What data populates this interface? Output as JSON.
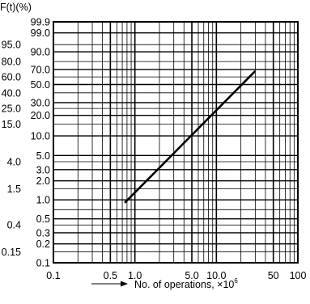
{
  "chart_data": {
    "type": "line",
    "title": "",
    "ylabel": "F(t)(%)",
    "xlabel": "No. of operations, ×10",
    "xlabel_exponent": "6",
    "x_scale": "log",
    "y_scale": "weibull-probability",
    "xlim": [
      0.1,
      100
    ],
    "ylim": [
      0.1,
      99.9
    ],
    "grid": true,
    "x_ticks": [
      {
        "value": 0.1,
        "label": "0.1"
      },
      {
        "value": 0.5,
        "label": "0.5"
      },
      {
        "value": 1,
        "label": "1.0"
      },
      {
        "value": 5,
        "label": "5.0"
      },
      {
        "value": 10,
        "label": "10.0"
      },
      {
        "value": 50,
        "label": "50"
      },
      {
        "value": 100,
        "label": "100"
      }
    ],
    "y_ticks_right": [
      {
        "value": 99.9,
        "label": "99.9"
      },
      {
        "value": 99.0,
        "label": "99.0"
      },
      {
        "value": 90.0,
        "label": "90.0"
      },
      {
        "value": 70.0,
        "label": "70.0"
      },
      {
        "value": 50.0,
        "label": "50.0"
      },
      {
        "value": 30.0,
        "label": "30.0"
      },
      {
        "value": 20.0,
        "label": "20.0"
      },
      {
        "value": 10.0,
        "label": "10.0"
      },
      {
        "value": 5.0,
        "label": "5.0"
      },
      {
        "value": 3.0,
        "label": "3.0"
      },
      {
        "value": 2.0,
        "label": "2.0"
      },
      {
        "value": 1.0,
        "label": "1.0"
      },
      {
        "value": 0.5,
        "label": "0.5"
      },
      {
        "value": 0.3,
        "label": "0.3"
      },
      {
        "value": 0.2,
        "label": "0.2"
      },
      {
        "value": 0.1,
        "label": "0.1"
      }
    ],
    "y_ticks_left": [
      {
        "value": 95.0,
        "label": "95.0"
      },
      {
        "value": 80.0,
        "label": "80.0"
      },
      {
        "value": 60.0,
        "label": "60.0"
      },
      {
        "value": 40.0,
        "label": "40.0"
      },
      {
        "value": 25.0,
        "label": "25.0"
      },
      {
        "value": 15.0,
        "label": "15.0"
      },
      {
        "value": 4.0,
        "label": "4.0"
      },
      {
        "value": 1.5,
        "label": "1.5"
      },
      {
        "value": 0.4,
        "label": "0.4"
      },
      {
        "value": 0.15,
        "label": "0.15"
      }
    ],
    "y_minor_grid": [
      40,
      60,
      80,
      95,
      25,
      15,
      4,
      1.5,
      0.4,
      0.15,
      0.7
    ],
    "series": [
      {
        "x": [
          0.75,
          30
        ],
        "y": [
          0.9,
          68
        ]
      }
    ]
  }
}
